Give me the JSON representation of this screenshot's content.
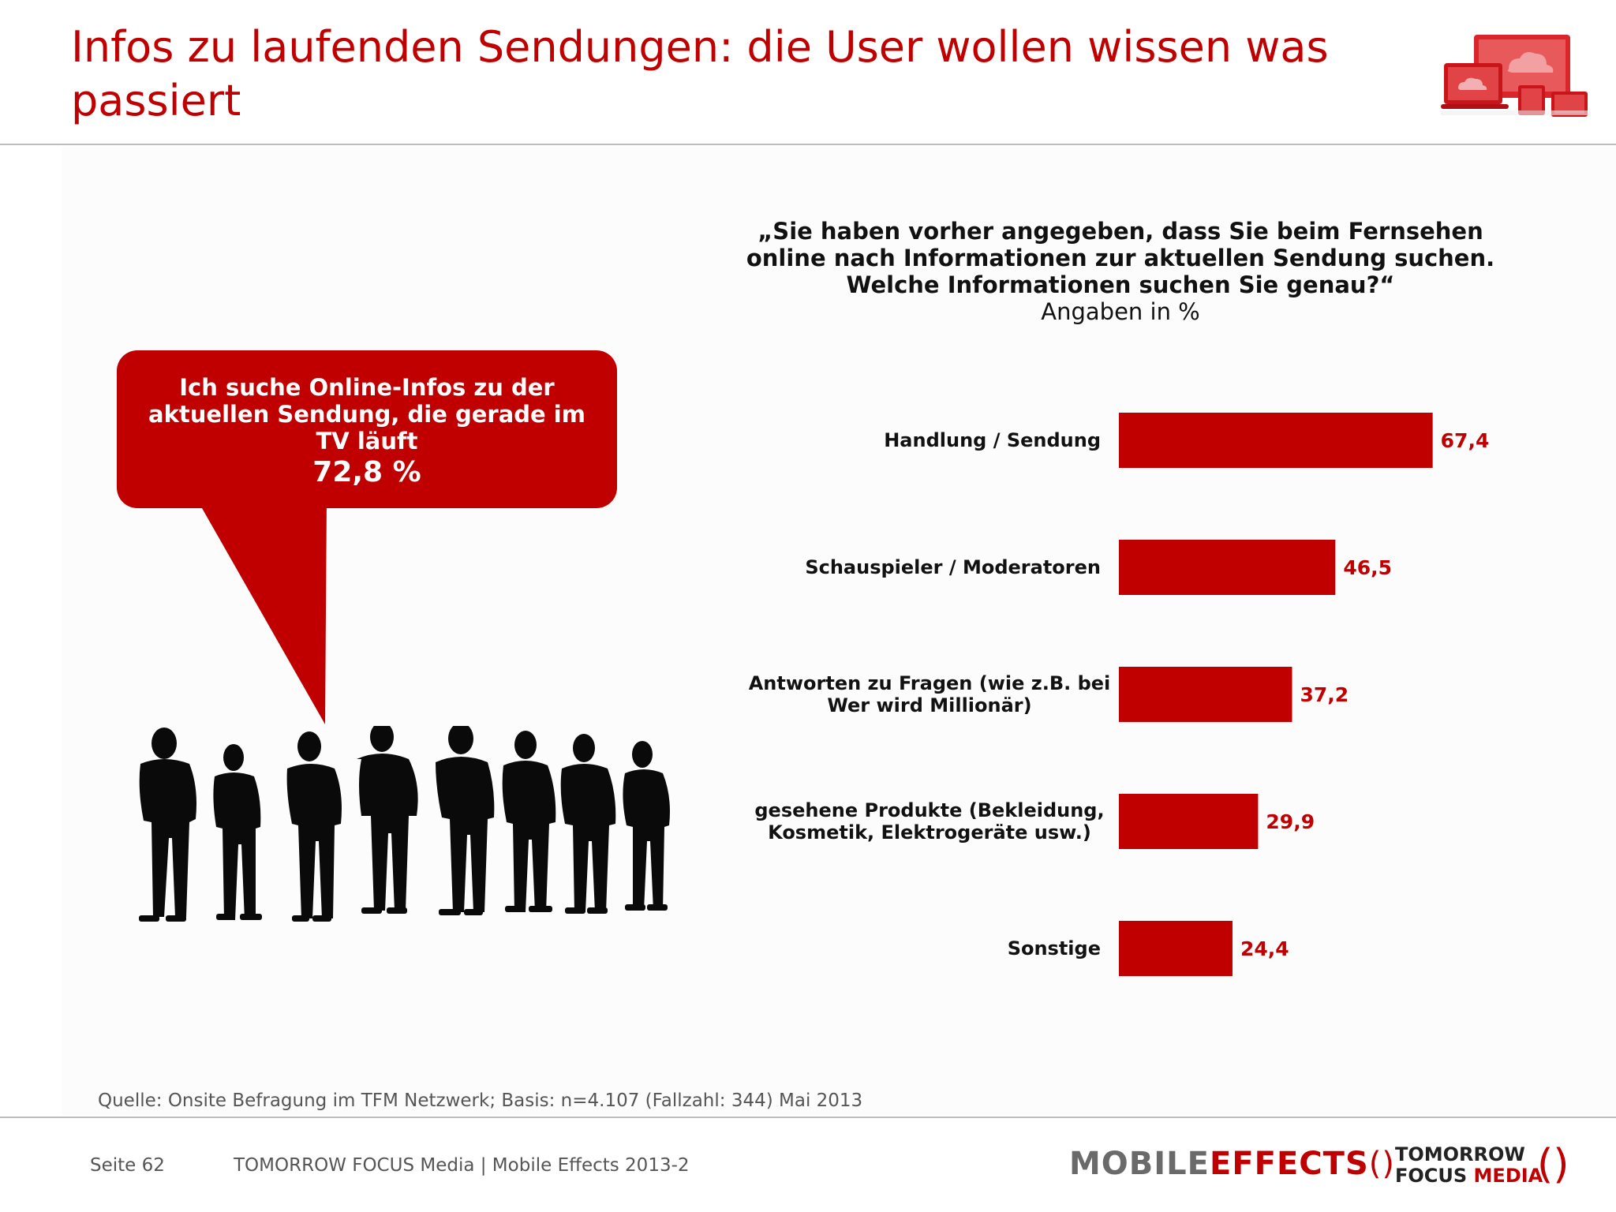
{
  "header": {
    "title": "Infos zu laufenden Sendungen: die User wollen wissen was passiert"
  },
  "question": {
    "text": "„Sie haben vorher angegeben, dass Sie beim Fernsehen online nach Informationen zur aktuellen Sendung suchen. Welche Informationen suchen Sie genau?“",
    "unit": "Angaben in %"
  },
  "callout": {
    "text": "Ich suche Online-Infos zu der aktuellen Sendung, die gerade im TV läuft",
    "value": "72,8 %"
  },
  "chart_data": {
    "type": "bar",
    "orientation": "horizontal",
    "categories": [
      [
        "Handlung / Sendung"
      ],
      [
        "Schauspieler / Moderatoren"
      ],
      [
        "Antworten zu Fragen (wie z.B. bei",
        "Wer wird Millionär)"
      ],
      [
        "gesehene Produkte (Bekleidung,",
        "Kosmetik, Elektrogeräte usw.)"
      ],
      [
        "Sonstige"
      ]
    ],
    "values": [
      67.4,
      46.5,
      37.2,
      29.9,
      24.4
    ],
    "value_labels": [
      "67,4",
      "46,5",
      "37,2",
      "29,9",
      "24,4"
    ],
    "bar_color": "#c00000",
    "label_color": "#c00000",
    "xlim": [
      0,
      100
    ],
    "grid": false,
    "legend": false
  },
  "source": "Quelle: Onsite Befragung im TFM Netzwerk; Basis: n=4.107 (Fallzahl: 344) Mai 2013",
  "footer": {
    "page": "Seite 62",
    "company": "TOMORROW FOCUS Media  |  Mobile Effects 2013-2",
    "brand_mobile_1": "MOBILE",
    "brand_mobile_2": "EFFECTS",
    "brand_tf_1": "TOMORROW",
    "brand_tf_2": "FOCUS",
    "brand_tf_3": "MEDIA"
  },
  "colors": {
    "accent": "#c00000",
    "rule": "#bdbdbd",
    "footer_text": "#555555"
  },
  "icons": [
    "devices-cloud-icon",
    "people-silhouettes-icon"
  ]
}
